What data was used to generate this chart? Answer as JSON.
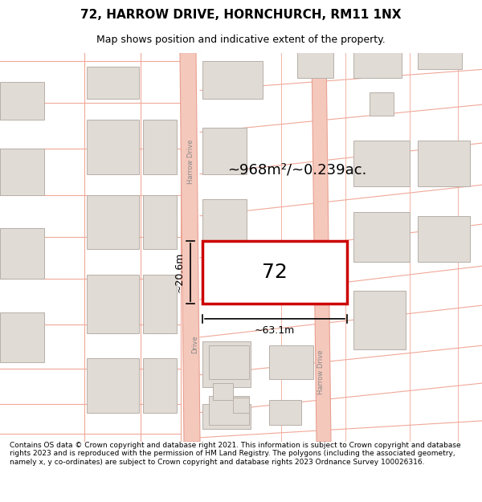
{
  "title_line1": "72, HARROW DRIVE, HORNCHURCH, RM11 1NX",
  "title_line2": "Map shows position and indicative extent of the property.",
  "footer_text": "Contains OS data © Crown copyright and database right 2021. This information is subject to Crown copyright and database rights 2023 and is reproduced with the permission of HM Land Registry. The polygons (including the associated geometry, namely x, y co-ordinates) are subject to Crown copyright and database rights 2023 Ordnance Survey 100026316.",
  "map_bg": "#ffffff",
  "road_color": "#f5c8bc",
  "road_border_color": "#e8a090",
  "plot_fill": "#ffffff",
  "plot_border": "#cc0000",
  "building_fill": "#e0dbd5",
  "building_border": "#b8b0a8",
  "line_color": "#f0a898",
  "area_text": "~968m²/~0.239ac.",
  "number_text": "72",
  "dim_width": "~63.1m",
  "dim_height": "~20.6m",
  "title_fontsize": 11,
  "subtitle_fontsize": 9,
  "footer_fontsize": 6.5
}
